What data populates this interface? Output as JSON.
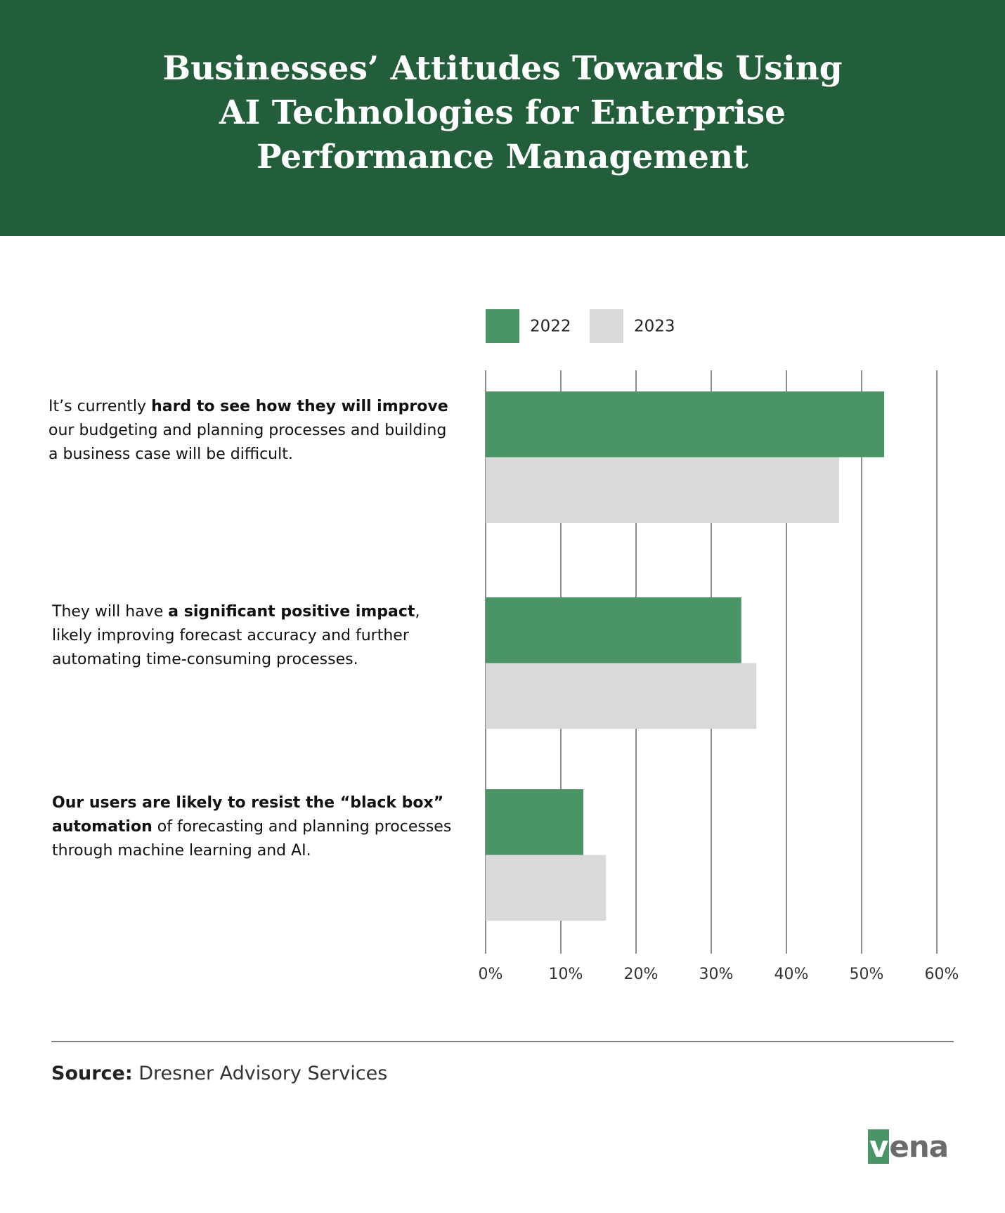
{
  "chart_data": {
    "type": "bar",
    "orientation": "horizontal",
    "title": "Businesses’ Attitudes Towards Using AI Technologies for Enterprise Performance Management",
    "categories": [
      [
        {
          "text": "It’s currently ",
          "bold": false
        },
        {
          "text": "hard to see how they will improve",
          "bold": true
        },
        {
          "text": " our budgeting and planning processes and building a business case will be difficult.",
          "bold": false
        }
      ],
      [
        {
          "text": "They will have ",
          "bold": false
        },
        {
          "text": "a significant positive impact",
          "bold": true
        },
        {
          "text": ", likely improving forecast accuracy and further automating time-consuming processes.",
          "bold": false
        }
      ],
      [
        {
          "text": "Our users are likely to resist the “black box” automation",
          "bold": true
        },
        {
          "text": " of forecasting and planning processes through machine learning and AI.",
          "bold": false
        }
      ]
    ],
    "series": [
      {
        "name": "2022",
        "color": "#4A9565",
        "values": [
          53,
          34,
          13
        ]
      },
      {
        "name": "2023",
        "color": "#D9D9D9",
        "values": [
          47,
          36,
          16
        ]
      }
    ],
    "xlim": [
      0,
      60
    ],
    "xticks": [
      {
        "value": 0,
        "label": "0%"
      },
      {
        "value": 10,
        "label": "10%"
      },
      {
        "value": 20,
        "label": "20%"
      },
      {
        "value": 30,
        "label": "30%"
      },
      {
        "value": 40,
        "label": "40%"
      },
      {
        "value": 50,
        "label": "50%"
      },
      {
        "value": 60,
        "label": "60%"
      }
    ],
    "grid": true,
    "source_label": "Source:",
    "source": "Dresner Advisory Services",
    "logo": "vena"
  }
}
